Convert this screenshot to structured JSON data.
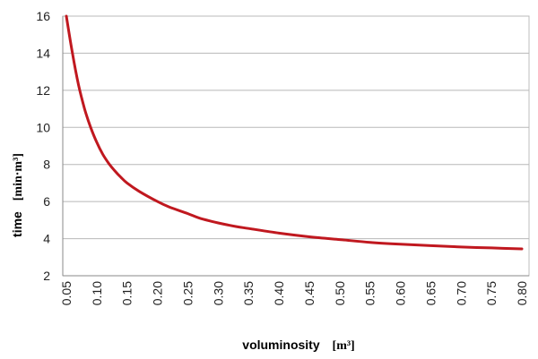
{
  "chart_data": {
    "type": "line",
    "title": "",
    "xlabel": "voluminosity",
    "xunit": "[m³]",
    "ylabel": "time",
    "yunit": "[min·m³]",
    "xlim": [
      0.05,
      0.8
    ],
    "ylim": [
      2,
      16
    ],
    "x_ticks": [
      "0.05",
      "0.10",
      "0.15",
      "0.20",
      "0.25",
      "0.30",
      "0.35",
      "0.40",
      "0.45",
      "0.50",
      "0.55",
      "0.60",
      "0.65",
      "0.70",
      "0.75",
      "0.80"
    ],
    "y_ticks": [
      "2",
      "4",
      "6",
      "8",
      "10",
      "12",
      "14",
      "16"
    ],
    "grid": "horizontal",
    "series": [
      {
        "color": "#c0181f",
        "x": [
          0.05,
          0.06,
          0.07,
          0.08,
          0.09,
          0.1,
          0.11,
          0.12,
          0.13,
          0.14,
          0.15,
          0.17,
          0.2,
          0.22,
          0.25,
          0.27,
          0.3,
          0.33,
          0.35,
          0.4,
          0.45,
          0.5,
          0.55,
          0.6,
          0.65,
          0.7,
          0.75,
          0.8
        ],
        "y": [
          16.0,
          14.0,
          12.3,
          11.0,
          10.0,
          9.2,
          8.55,
          8.05,
          7.65,
          7.3,
          7.0,
          6.55,
          6.0,
          5.7,
          5.35,
          5.1,
          4.85,
          4.65,
          4.55,
          4.3,
          4.1,
          3.95,
          3.8,
          3.7,
          3.62,
          3.55,
          3.5,
          3.45
        ]
      }
    ]
  }
}
